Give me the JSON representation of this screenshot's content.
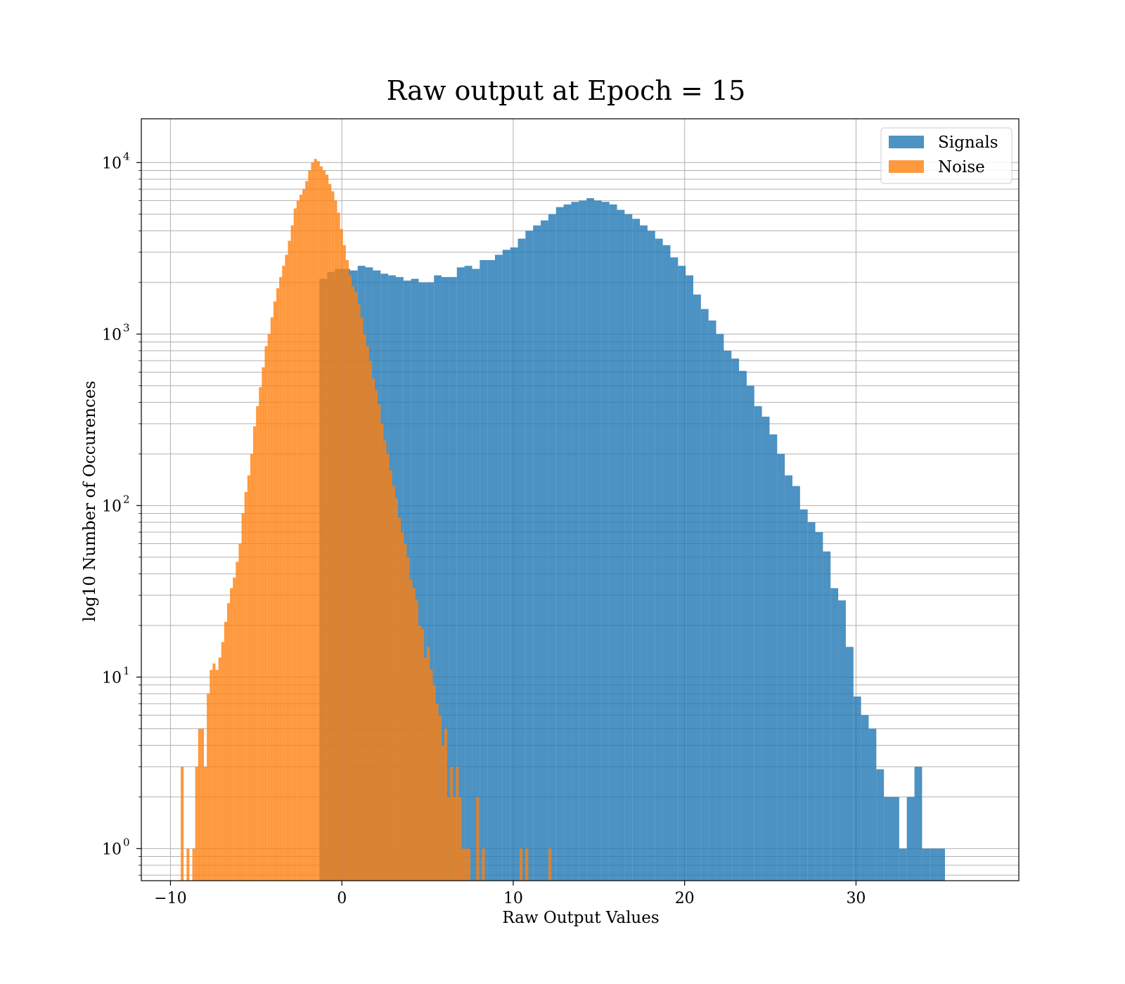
{
  "chart_data": {
    "type": "bar",
    "title": "Raw output at Epoch = 15",
    "xlabel": "Raw Output Values",
    "ylabel": "log10 Number of Occurences",
    "xlim": [
      -11.7,
      39.5
    ],
    "ylim": [
      0.65,
      18000
    ],
    "yscale": "log",
    "grid": true,
    "legend_position": "top-right",
    "x_ticks": [
      {
        "value": -10,
        "label": "−10"
      },
      {
        "value": 0,
        "label": "0"
      },
      {
        "value": 10,
        "label": "10"
      },
      {
        "value": 20,
        "label": "20"
      },
      {
        "value": 30,
        "label": "30"
      }
    ],
    "y_ticks": [
      {
        "value": 1,
        "base": "10",
        "exp": "0"
      },
      {
        "value": 10,
        "base": "10",
        "exp": "1"
      },
      {
        "value": 100,
        "base": "10",
        "exp": "2"
      },
      {
        "value": 1000,
        "base": "10",
        "exp": "3"
      },
      {
        "value": 10000,
        "base": "10",
        "exp": "4"
      }
    ],
    "series": [
      {
        "name": "Signals",
        "color": "#1f77b4",
        "opacity": 0.8,
        "bin_start": -1.3,
        "bin_width": 0.445,
        "values": [
          2100,
          2300,
          2400,
          2400,
          2350,
          2500,
          2450,
          2350,
          2250,
          2200,
          2150,
          2050,
          2100,
          2000,
          2000,
          2200,
          2150,
          2150,
          2450,
          2500,
          2400,
          2700,
          2700,
          2900,
          3100,
          3200,
          3600,
          4000,
          4300,
          4600,
          5000,
          5500,
          5700,
          5900,
          6000,
          6200,
          6000,
          5900,
          5700,
          5300,
          5000,
          4700,
          4300,
          4000,
          3600,
          3300,
          2800,
          2500,
          2200,
          1700,
          1400,
          1200,
          1000,
          800,
          720,
          610,
          500,
          380,
          330,
          260,
          200,
          150,
          130,
          95,
          80,
          70,
          54,
          33,
          28,
          15,
          7.7,
          6.0,
          5.0,
          2.9,
          2.0,
          2.0,
          1.0,
          2.0,
          3.0,
          1.0,
          1.0,
          1.0,
          0,
          0,
          0.001
        ]
      },
      {
        "name": "Noise",
        "color": "#ff7f0e",
        "opacity": 0.8,
        "bin_start": -9.4,
        "bin_width": 0.169,
        "values": [
          3,
          0,
          1,
          0,
          1,
          3,
          5,
          5,
          3,
          8,
          11,
          12,
          11,
          13,
          16,
          21,
          27,
          33,
          38,
          47,
          60,
          90,
          120,
          150,
          200,
          290,
          380,
          490,
          640,
          850,
          1000,
          1250,
          1550,
          1850,
          2150,
          2500,
          2900,
          3500,
          4300,
          5400,
          6000,
          6500,
          7000,
          7800,
          9000,
          10000,
          10500,
          10200,
          9500,
          9000,
          8500,
          7500,
          6800,
          6000,
          5100,
          4100,
          3300,
          2700,
          2200,
          1900,
          1750,
          1500,
          1250,
          1000,
          850,
          700,
          550,
          470,
          390,
          300,
          240,
          200,
          160,
          130,
          110,
          85,
          70,
          60,
          50,
          37,
          33,
          28,
          20,
          19,
          13,
          15,
          11,
          9,
          7,
          6,
          4,
          5,
          2,
          3,
          2,
          3,
          2,
          1,
          1,
          1,
          0,
          0,
          2,
          0,
          1,
          0,
          0,
          0,
          0,
          0,
          0,
          0,
          0,
          0,
          0,
          0,
          0,
          1,
          0,
          1,
          0,
          0,
          0,
          0,
          0,
          0,
          0,
          1
        ]
      }
    ]
  }
}
